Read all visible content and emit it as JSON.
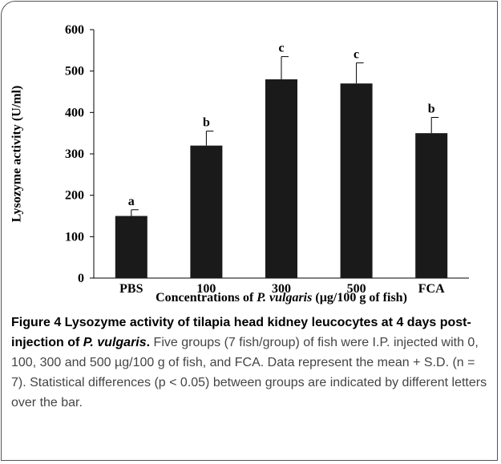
{
  "chart_data": {
    "type": "bar",
    "y_label": "Lysozyme activity (U/ml)",
    "x_label": [
      "Concentrations of ",
      "P. vulgaris",
      " (µg/100 g of fish)"
    ],
    "categories": [
      "PBS",
      "100",
      "300",
      "500",
      "FCA"
    ],
    "values": [
      150,
      320,
      480,
      470,
      350
    ],
    "errors": [
      15,
      35,
      55,
      50,
      38
    ],
    "annotations": [
      "a",
      "b",
      "c",
      "c",
      "b"
    ],
    "color": "#1a1a1a",
    "ylim": [
      0,
      600
    ],
    "yticks": [
      0,
      100,
      200,
      300,
      400,
      500,
      600
    ],
    "grid": false
  },
  "caption": {
    "title": [
      "Figure 4 Lysozyme activity of tilapia head kidney leucocytes at 4 days post-injection of ",
      "P. vulgaris",
      "."
    ],
    "text": " Five groups (7 fish/group) of fish were I.P. injected with 0, 100, 300 and 500 µg/100 g of fish, and FCA. Data represent the mean + S.D. (n = 7). Statistical differences (p < 0.05) between groups are indicated by different letters over the bar."
  }
}
